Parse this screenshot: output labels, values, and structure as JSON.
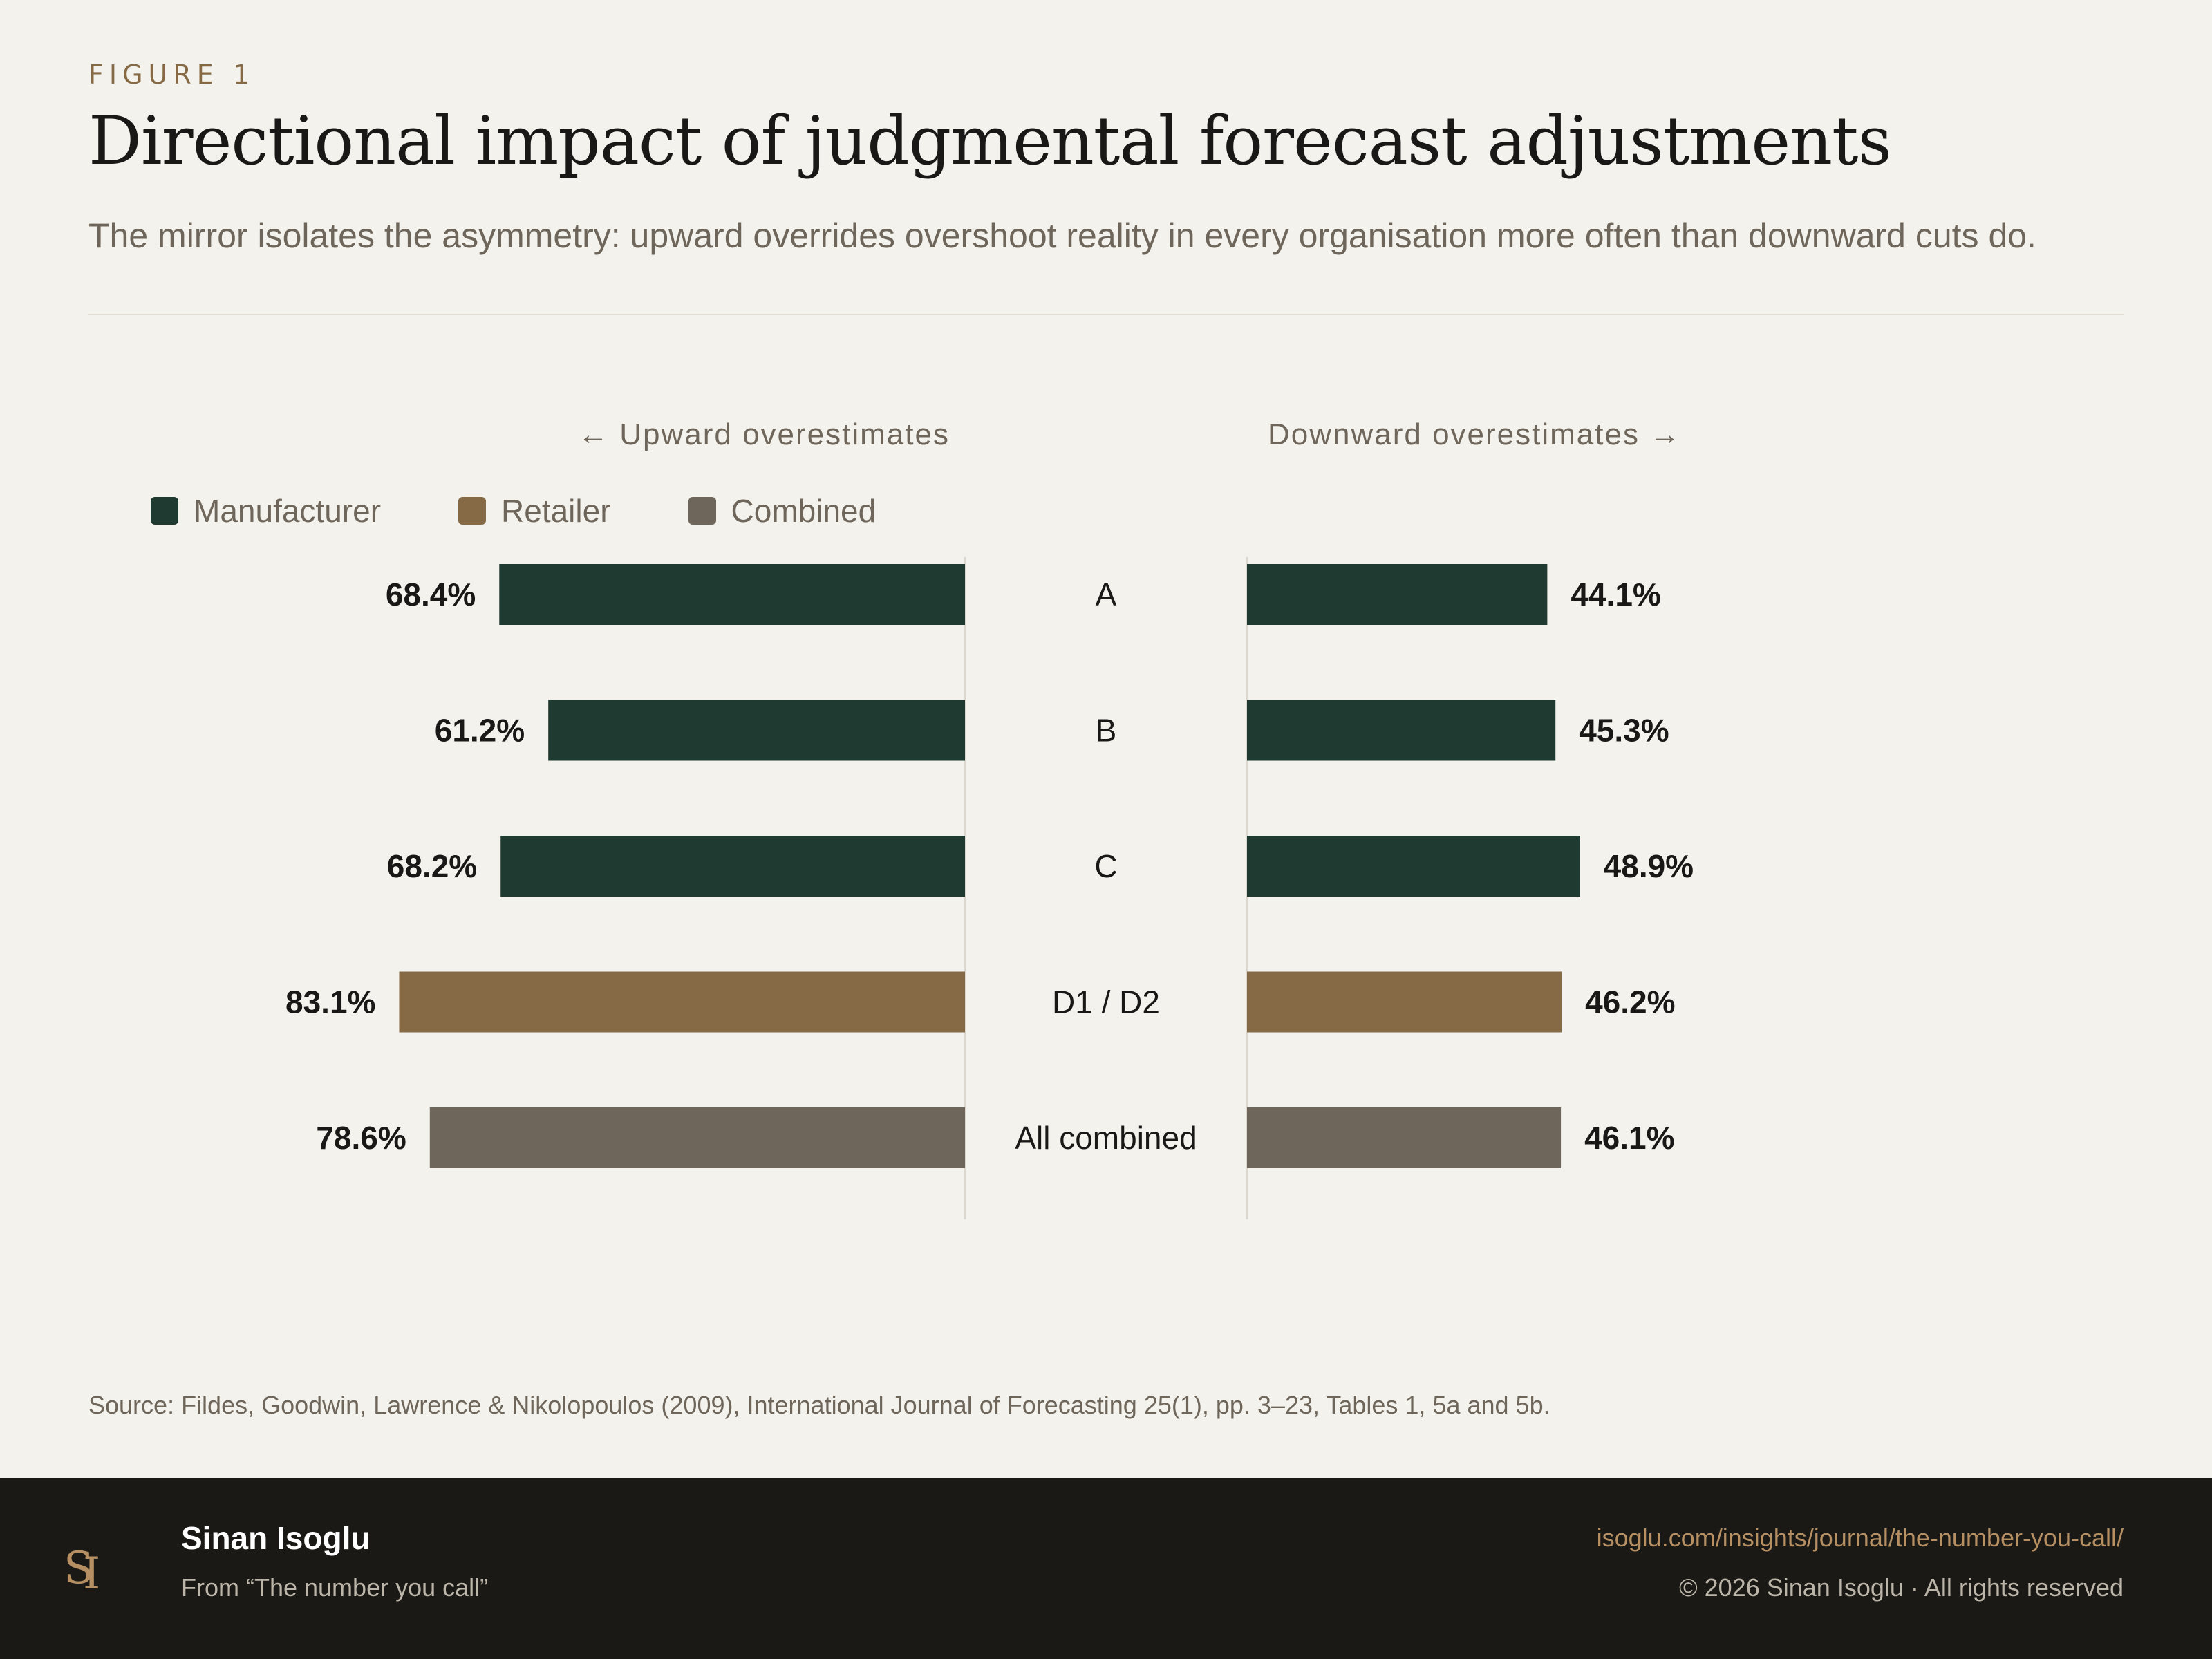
{
  "header": {
    "figure_label": "FIGURE 1",
    "title": "Directional impact of judgmental forecast adjustments",
    "subtitle": "The mirror isolates the asymmetry: upward overrides overshoot reality in every organisation more often than downward cuts do."
  },
  "chart_data": {
    "type": "bar",
    "orientation": "horizontal-mirror",
    "left_label": "← Upward overestimates",
    "right_label": "Downward overestimates →",
    "categories": [
      "A",
      "B",
      "C",
      "D1 / D2",
      "All combined"
    ],
    "groups": [
      "Manufacturer",
      "Manufacturer",
      "Manufacturer",
      "Retailer",
      "Combined"
    ],
    "series": [
      {
        "name": "Upward overestimates",
        "values": [
          68.4,
          61.2,
          68.2,
          83.1,
          78.6
        ]
      },
      {
        "name": "Downward overestimates",
        "values": [
          44.1,
          45.3,
          48.9,
          46.2,
          46.1
        ]
      }
    ],
    "value_labels": {
      "left": [
        "68.4%",
        "61.2%",
        "68.2%",
        "83.1%",
        "78.6%"
      ],
      "right": [
        "44.1%",
        "45.3%",
        "48.9%",
        "46.2%",
        "46.1%"
      ]
    },
    "unit": "%",
    "xlim": [
      0,
      100
    ],
    "legend": [
      {
        "label": "Manufacturer",
        "color": "#1f3a30"
      },
      {
        "label": "Retailer",
        "color": "#856a45"
      },
      {
        "label": "Combined",
        "color": "#6e665a"
      }
    ],
    "legend_position": "top-left"
  },
  "source": "Source: Fildes, Goodwin, Lawrence & Nikolopoulos (2009), International Journal of Forecasting 25(1), pp. 3–23, Tables 1, 5a and 5b.",
  "footer": {
    "logo_text": "SI",
    "author": "Sinan Isoglu",
    "from": "From “The number you call”",
    "url": "isoglu.com/insights/journal/the-number-you-call/",
    "copyright": "© 2026 Sinan Isoglu · All rights reserved"
  }
}
